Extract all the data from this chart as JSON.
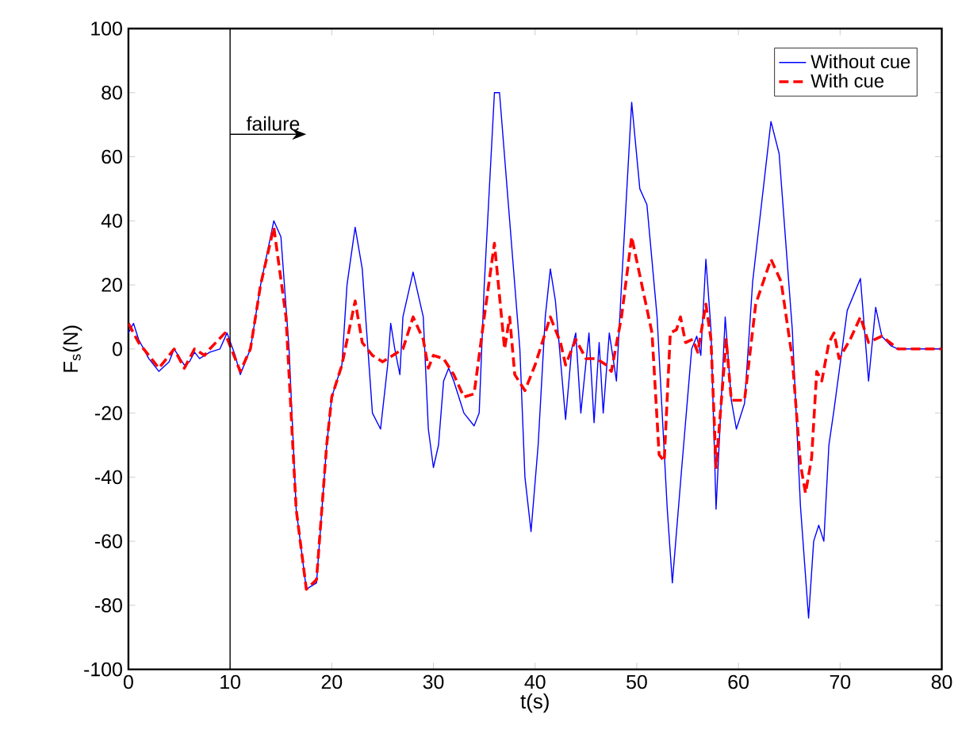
{
  "chart_data": {
    "type": "line",
    "xlabel": "t(s)",
    "ylabel": "F$_{s}$(N)",
    "xlim": [
      0,
      80
    ],
    "ylim": [
      -100,
      100
    ],
    "xticks": [
      0,
      10,
      20,
      30,
      40,
      50,
      60,
      70,
      80
    ],
    "yticks": [
      -100,
      -80,
      -60,
      -40,
      -20,
      0,
      20,
      40,
      60,
      80,
      100
    ],
    "grid": false,
    "legend": "top right",
    "ref_lines": [
      {
        "axis": "x",
        "value": 10,
        "color": "#000000"
      }
    ],
    "annotations": [
      {
        "text": "failure",
        "x": 10,
        "y": 67
      }
    ],
    "series": [
      {
        "name": "Without cue",
        "color": "#0000ff",
        "line_style": "solid",
        "x": [
          0,
          0.5,
          1,
          2,
          3,
          4,
          4.5,
          5.5,
          6,
          6.5,
          7,
          8,
          9,
          9.7,
          10.5,
          11,
          12,
          13,
          14.3,
          15,
          15.8,
          16.5,
          17.5,
          18.5,
          19.5,
          20,
          21,
          21.5,
          22.3,
          23,
          24,
          24.8,
          25.5,
          25.8,
          26.2,
          26.7,
          27,
          28,
          29,
          29.5,
          30,
          30.5,
          31,
          31.5,
          32,
          33,
          34,
          34.5,
          35,
          36,
          36.5,
          37.5,
          38.5,
          39,
          39.6,
          40.3,
          41,
          41.5,
          42,
          43,
          43.6,
          44,
          44.5,
          45.3,
          45.8,
          46.3,
          46.7,
          47.3,
          48,
          48.5,
          49.5,
          50.3,
          51,
          52,
          53,
          53.5,
          54.4,
          55.4,
          55.9,
          56.3,
          56.8,
          57.3,
          57.8,
          58.7,
          59.3,
          59.8,
          60.6,
          61.4,
          63.2,
          64,
          65.3,
          66.1,
          66.9,
          67.4,
          67.9,
          68.4,
          68.9,
          69.4,
          70.2,
          70.7,
          72,
          72.8,
          73.5,
          74.1,
          75,
          75.7,
          80
        ],
        "values": [
          5,
          8,
          3,
          -3,
          -7,
          -4,
          0,
          -5,
          -4,
          -1,
          -3,
          -1,
          0,
          5,
          -2,
          -8,
          0,
          20,
          40,
          35,
          0,
          -50,
          -75,
          -73,
          -30,
          -15,
          -5,
          20,
          38,
          25,
          -20,
          -25,
          -5,
          8,
          0,
          -8,
          10,
          24,
          10,
          -25,
          -37,
          -30,
          -10,
          -6,
          -10,
          -20,
          -24,
          -20,
          20,
          80,
          80,
          40,
          0,
          -40,
          -57,
          -30,
          10,
          25,
          15,
          -22,
          0,
          5,
          -20,
          5,
          -23,
          2,
          -20,
          5,
          -10,
          20,
          77,
          50,
          45,
          10,
          -50,
          -73,
          -38,
          0,
          4,
          -2,
          28,
          6,
          -50,
          10,
          -16,
          -25,
          -17,
          21,
          71,
          61,
          6,
          -49,
          -84,
          -60,
          -55,
          -60,
          -30,
          -19,
          0,
          12,
          22,
          -10,
          13,
          4,
          1,
          0,
          0
        ]
      },
      {
        "name": "With cue",
        "color": "#ff0000",
        "line_style": "dashed",
        "x": [
          0,
          1,
          3,
          4.5,
          5.5,
          6.5,
          7.5,
          8,
          9.5,
          10.5,
          11,
          12,
          13,
          14.3,
          15.5,
          16.5,
          17.5,
          18.5,
          19.5,
          20,
          21,
          22.3,
          23,
          24,
          25,
          26,
          27,
          28,
          29,
          29.5,
          30,
          31,
          32,
          33,
          34,
          35,
          36,
          37,
          37.5,
          38,
          39,
          40,
          41.5,
          42.5,
          43,
          44,
          45,
          46,
          47,
          47.5,
          48.5,
          49.5,
          50.5,
          51.5,
          52.2,
          52.7,
          53.3,
          53.9,
          54.3,
          54.8,
          55.5,
          56,
          56.8,
          57.3,
          57.8,
          58.8,
          59.3,
          60.6,
          61.7,
          63.2,
          64.2,
          65.3,
          66.1,
          66.6,
          67.2,
          67.7,
          68.2,
          68.9,
          69.4,
          69.9,
          71,
          72,
          72.8,
          74.1,
          75.7,
          80
        ],
        "values": [
          8,
          2,
          -6,
          0,
          -6,
          0,
          -2,
          0,
          5,
          -3,
          -7,
          0,
          20,
          38,
          10,
          -50,
          -75,
          -72,
          -30,
          -15,
          -5,
          15,
          2,
          -2,
          -4,
          -2,
          0,
          10,
          3,
          -6,
          -2,
          -3,
          -8,
          -15,
          -14,
          10,
          33,
          0,
          10,
          -8,
          -13,
          -5,
          10,
          2,
          -5,
          3,
          -3,
          -3,
          -5,
          -7,
          10,
          35,
          20,
          5,
          -33,
          -35,
          5,
          6,
          10,
          2,
          3,
          -1,
          14,
          3,
          -37,
          3,
          -16,
          -16,
          14,
          28,
          21,
          -3,
          -36,
          -45,
          -34,
          -7,
          -10,
          2,
          5,
          -3,
          3,
          10,
          2,
          4,
          0,
          0
        ]
      }
    ]
  }
}
